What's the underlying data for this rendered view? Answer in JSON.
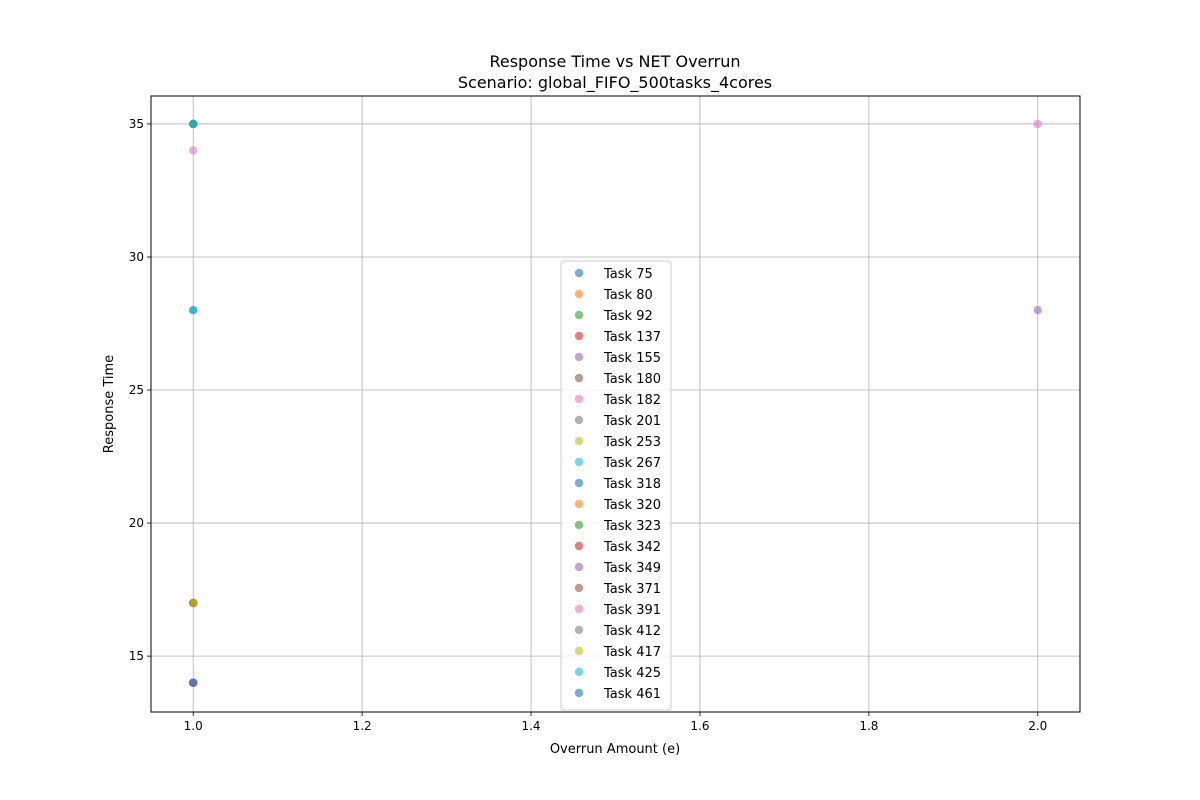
{
  "chart_data": {
    "type": "scatter",
    "title_lines": [
      "Response Time vs NET Overrun",
      "Scenario: global_FIFO_500tasks_4cores"
    ],
    "xlabel": "Overrun Amount (e)",
    "ylabel": "Response Time",
    "xlim": [
      0.95,
      2.05
    ],
    "ylim": [
      12.9,
      36.05
    ],
    "xticks": [
      "1.0",
      "1.2",
      "1.4",
      "1.6",
      "1.8",
      "2.0"
    ],
    "yticks": [
      "15",
      "20",
      "25",
      "30",
      "35"
    ],
    "grid": true,
    "legend_position": "center",
    "series": [
      {
        "name": "Task 75",
        "color": "#1f77b4",
        "points": [
          [
            1.0,
            28
          ],
          [
            1.0,
            35
          ]
        ]
      },
      {
        "name": "Task 80",
        "color": "#ff7f0e",
        "points": [
          [
            1.0,
            17
          ]
        ]
      },
      {
        "name": "Task 92",
        "color": "#2ca02c",
        "points": [
          [
            1.0,
            35
          ]
        ]
      },
      {
        "name": "Task 137",
        "color": "#d62728",
        "points": [
          [
            1.0,
            14
          ]
        ]
      },
      {
        "name": "Task 155",
        "color": "#9467bd",
        "points": [
          [
            1.0,
            14
          ],
          [
            2.0,
            28
          ]
        ]
      },
      {
        "name": "Task 180",
        "color": "#8c564b",
        "points": [
          [
            1.0,
            17
          ]
        ]
      },
      {
        "name": "Task 182",
        "color": "#e377c2",
        "points": [
          [
            1.0,
            34
          ],
          [
            2.0,
            35
          ]
        ]
      },
      {
        "name": "Task 201",
        "color": "#7f7f7f",
        "points": [
          [
            1.0,
            17
          ]
        ]
      },
      {
        "name": "Task 253",
        "color": "#bcbd22",
        "points": [
          [
            1.0,
            17
          ]
        ]
      },
      {
        "name": "Task 267",
        "color": "#17becf",
        "points": [
          [
            1.0,
            28
          ]
        ]
      },
      {
        "name": "Task 318",
        "color": "#1f77b4",
        "points": [
          [
            1.0,
            35
          ]
        ]
      },
      {
        "name": "Task 320",
        "color": "#ff7f0e",
        "points": [
          [
            1.0,
            17
          ]
        ]
      },
      {
        "name": "Task 323",
        "color": "#2ca02c",
        "points": [
          [
            1.0,
            35
          ]
        ]
      },
      {
        "name": "Task 342",
        "color": "#d62728",
        "points": [
          [
            1.0,
            14
          ]
        ]
      },
      {
        "name": "Task 349",
        "color": "#9467bd",
        "points": [
          [
            1.0,
            14
          ]
        ]
      },
      {
        "name": "Task 371",
        "color": "#8c564b",
        "points": [
          [
            1.0,
            17
          ]
        ]
      },
      {
        "name": "Task 391",
        "color": "#e377c2",
        "points": [
          [
            1.0,
            14
          ]
        ]
      },
      {
        "name": "Task 412",
        "color": "#7f7f7f",
        "points": [
          [
            1.0,
            35
          ]
        ]
      },
      {
        "name": "Task 417",
        "color": "#bcbd22",
        "points": [
          [
            1.0,
            17
          ]
        ]
      },
      {
        "name": "Task 425",
        "color": "#17becf",
        "points": [
          [
            1.0,
            35
          ]
        ]
      },
      {
        "name": "Task 461",
        "color": "#1f77b4",
        "points": [
          [
            1.0,
            14
          ]
        ]
      }
    ]
  }
}
